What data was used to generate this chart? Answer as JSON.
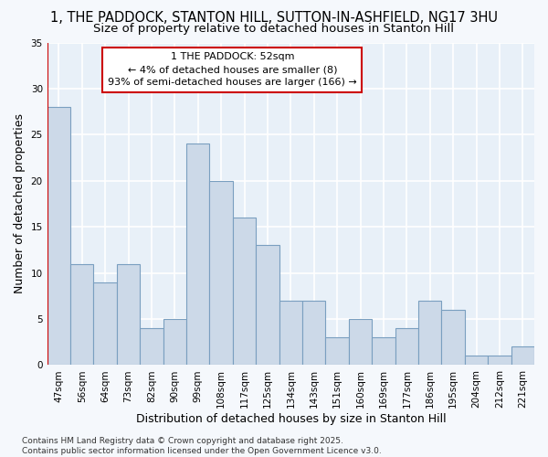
{
  "title1": "1, THE PADDOCK, STANTON HILL, SUTTON-IN-ASHFIELD, NG17 3HU",
  "title2": "Size of property relative to detached houses in Stanton Hill",
  "xlabel": "Distribution of detached houses by size in Stanton Hill",
  "ylabel": "Number of detached properties",
  "categories": [
    "47sqm",
    "56sqm",
    "64sqm",
    "73sqm",
    "82sqm",
    "90sqm",
    "99sqm",
    "108sqm",
    "117sqm",
    "125sqm",
    "134sqm",
    "143sqm",
    "151sqm",
    "160sqm",
    "169sqm",
    "177sqm",
    "186sqm",
    "195sqm",
    "204sqm",
    "212sqm",
    "221sqm"
  ],
  "values": [
    28,
    11,
    9,
    11,
    4,
    5,
    24,
    20,
    16,
    13,
    7,
    7,
    3,
    5,
    3,
    4,
    7,
    6,
    1,
    1,
    2
  ],
  "bar_color": "#ccd9e8",
  "bar_edge_color": "#7a9fc0",
  "highlight_line_color": "#cc0000",
  "annotation_line1": "1 THE PADDOCK: 52sqm",
  "annotation_line2": "← 4% of detached houses are smaller (8)",
  "annotation_line3": "93% of semi-detached houses are larger (166) →",
  "annotation_box_color": "#ffffff",
  "annotation_box_edge_color": "#cc0000",
  "ylim": [
    0,
    35
  ],
  "yticks": [
    0,
    5,
    10,
    15,
    20,
    25,
    30,
    35
  ],
  "footer_text": "Contains HM Land Registry data © Crown copyright and database right 2025.\nContains public sector information licensed under the Open Government Licence v3.0.",
  "background_color": "#f5f8fc",
  "plot_background_color": "#e8f0f8",
  "grid_color": "#ffffff",
  "title_fontsize": 10.5,
  "subtitle_fontsize": 9.5,
  "axis_label_fontsize": 9,
  "tick_fontsize": 7.5,
  "annotation_fontsize": 8,
  "footer_fontsize": 6.5
}
